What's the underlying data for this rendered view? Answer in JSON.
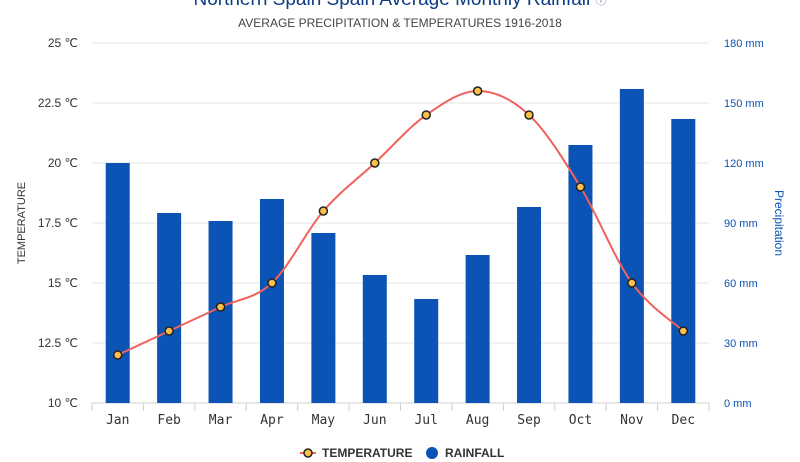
{
  "chart_data": {
    "type": "bar",
    "title": "Northern Spain Spain Average Monthly Rainfall",
    "title_icon": "info-icon",
    "subtitle": "AVERAGE PRECIPITATION & TEMPERATURES 1916-2018",
    "categories": [
      "Jan",
      "Feb",
      "Mar",
      "Apr",
      "May",
      "Jun",
      "Jul",
      "Aug",
      "Sep",
      "Oct",
      "Nov",
      "Dec"
    ],
    "series": [
      {
        "name": "TEMPERATURE",
        "type": "line",
        "axis": "left",
        "color": "#f0625c",
        "marker_fill": "#fbc04b",
        "values": [
          12,
          13,
          14,
          15,
          18,
          20,
          22,
          23,
          22,
          19,
          15,
          13
        ]
      },
      {
        "name": "RAINFALL",
        "type": "bar",
        "axis": "right",
        "color": "#0b53b4",
        "values": [
          120,
          95,
          91,
          102,
          85,
          64,
          52,
          74,
          98,
          129,
          157,
          142
        ]
      }
    ],
    "y_left": {
      "label": "TEMPERATURE",
      "ylim": [
        10,
        25
      ],
      "ticks": [
        10,
        12.5,
        15,
        17.5,
        20,
        22.5,
        25
      ],
      "tick_labels": [
        "10 ℃",
        "12.5 ℃",
        "15 ℃",
        "17.5 ℃",
        "20 ℃",
        "22.5 ℃",
        "25 ℃"
      ]
    },
    "y_right": {
      "label": "Precipitation",
      "ylim": [
        0,
        180
      ],
      "ticks": [
        0,
        30,
        60,
        90,
        120,
        150,
        180
      ],
      "tick_labels": [
        "0 mm",
        "30 mm",
        "60 mm",
        "90 mm",
        "120 mm",
        "150 mm",
        "180 mm"
      ],
      "color": "#0b53b4"
    },
    "grid": true,
    "legend_position": "bottom-center"
  }
}
